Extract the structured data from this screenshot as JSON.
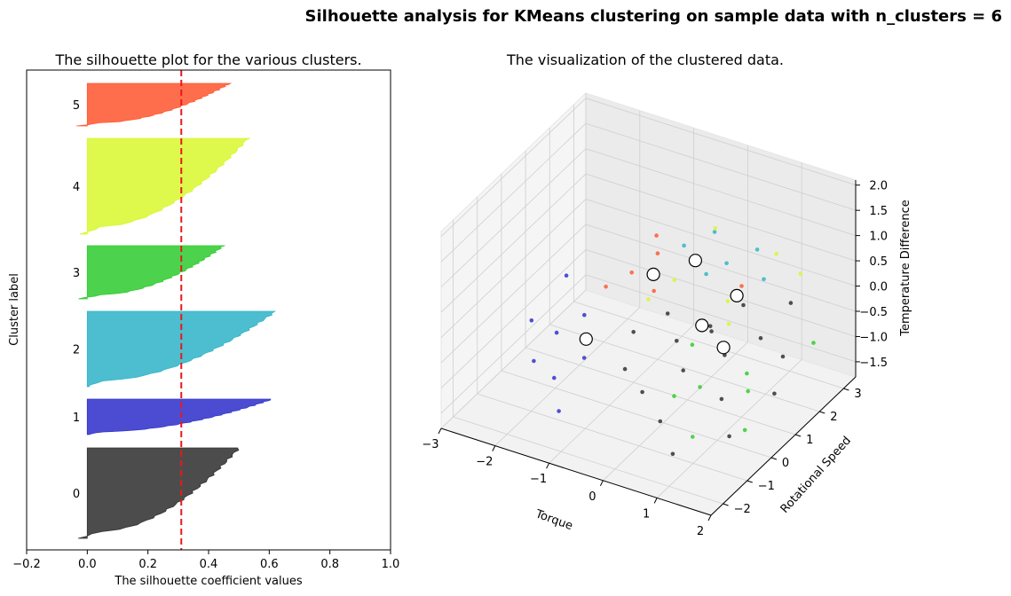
{
  "suptitle": "Silhouette analysis for KMeans clustering on sample data with n_clusters = 6",
  "colors": {
    "cluster_0": "#333333",
    "cluster_1": "#3333cc",
    "cluster_2": "#33b5c8",
    "cluster_3": "#33cc33",
    "cluster_4": "#d9f733",
    "cluster_5": "#ff5a33",
    "average_line": "#e8191b"
  },
  "chart_data": [
    {
      "type": "area",
      "title": "The silhouette plot for the various clusters.",
      "xlabel": "The silhouette coefficient values",
      "ylabel": "Cluster label",
      "xlim": [
        -0.2,
        1.0
      ],
      "xticks": [
        "−0.2",
        "0.0",
        "0.2",
        "0.4",
        "0.6",
        "0.8",
        "1.0"
      ],
      "average_silhouette": 0.31,
      "grid": false,
      "series": [
        {
          "name": "0",
          "max": 0.5,
          "min": -0.03,
          "size": 82
        },
        {
          "name": "1",
          "max": 0.61,
          "min": 0.0,
          "size": 34
        },
        {
          "name": "2",
          "max": 0.62,
          "min": 0.0,
          "size": 71
        },
        {
          "name": "3",
          "max": 0.45,
          "min": -0.03,
          "size": 48
        },
        {
          "name": "4",
          "max": 0.53,
          "min": -0.02,
          "size": 88
        },
        {
          "name": "5",
          "max": 0.47,
          "min": -0.03,
          "size": 34
        }
      ]
    },
    {
      "type": "scatter",
      "title": "The visualization of the clustered data.",
      "xlabel": "Torque",
      "ylabel": "Rotational Speed",
      "zlabel": "Temperature Difference",
      "xticks": [
        "−3",
        "−2",
        "−1",
        "0",
        "1",
        "2"
      ],
      "yticks": [
        "−2",
        "−1",
        "0",
        "1",
        "2",
        "3"
      ],
      "zticks": [
        "−1.5",
        "−1.0",
        "−0.5",
        "0.0",
        "0.5",
        "1.0",
        "1.5",
        "2.0"
      ],
      "xlim": [
        -3,
        2
      ],
      "ylim": [
        -2.5,
        3.5
      ],
      "zlim": [
        -1.8,
        2.1
      ],
      "centers": [
        {
          "x": -0.3,
          "y": 2.0,
          "z": 0.4
        },
        {
          "x": -0.9,
          "y": 1.6,
          "z": 0.1
        },
        {
          "x": 0.2,
          "y": 2.6,
          "z": -0.4
        },
        {
          "x": 0.4,
          "y": 1.6,
          "z": -0.9
        },
        {
          "x": -1.7,
          "y": 0.6,
          "z": -1.0
        },
        {
          "x": 0.0,
          "y": 1.6,
          "z": -0.6
        }
      ],
      "points": [
        {
          "cluster": 0,
          "x": 0.2,
          "y": 1.5,
          "z": -0.5
        },
        {
          "cluster": 0,
          "x": 0.6,
          "y": 1.2,
          "z": -0.8
        },
        {
          "cluster": 0,
          "x": -0.2,
          "y": 1.0,
          "z": -0.7
        },
        {
          "cluster": 0,
          "x": 0.9,
          "y": 0.4,
          "z": -1.2
        },
        {
          "cluster": 0,
          "x": 1.4,
          "y": -0.4,
          "z": -1.4
        },
        {
          "cluster": 0,
          "x": 0.1,
          "y": 0.6,
          "z": -1.0
        },
        {
          "cluster": 0,
          "x": -0.5,
          "y": 1.3,
          "z": -0.4
        },
        {
          "cluster": 0,
          "x": 0.5,
          "y": 2.2,
          "z": -0.3
        },
        {
          "cluster": 0,
          "x": 1.0,
          "y": 1.8,
          "z": -0.6
        },
        {
          "cluster": 0,
          "x": -0.8,
          "y": 0.2,
          "z": -1.1
        },
        {
          "cluster": 0,
          "x": 0.3,
          "y": -0.8,
          "z": -1.3
        },
        {
          "cluster": 0,
          "x": 1.7,
          "y": 0.8,
          "z": -1.0
        },
        {
          "cluster": 0,
          "x": 0.8,
          "y": -1.4,
          "z": -1.5
        },
        {
          "cluster": 0,
          "x": -0.3,
          "y": -0.2,
          "z": -1.2
        },
        {
          "cluster": 0,
          "x": 1.2,
          "y": 2.6,
          "z": -0.2
        },
        {
          "cluster": 0,
          "x": 0.0,
          "y": 2.0,
          "z": -0.9
        },
        {
          "cluster": 0,
          "x": 1.5,
          "y": 1.6,
          "z": -0.7
        },
        {
          "cluster": 0,
          "x": -1.0,
          "y": 1.0,
          "z": -0.8
        },
        {
          "cluster": 1,
          "x": -2.2,
          "y": 0.5,
          "z": -1.0
        },
        {
          "cluster": 1,
          "x": -2.6,
          "y": 1.8,
          "z": -0.6
        },
        {
          "cluster": 1,
          "x": -1.8,
          "y": -0.5,
          "z": -1.3
        },
        {
          "cluster": 1,
          "x": -2.4,
          "y": 0.0,
          "z": -1.4
        },
        {
          "cluster": 1,
          "x": -1.4,
          "y": -1.2,
          "z": -1.5
        },
        {
          "cluster": 1,
          "x": -2.0,
          "y": 1.2,
          "z": -0.9
        },
        {
          "cluster": 1,
          "x": -2.8,
          "y": 0.8,
          "z": -1.1
        },
        {
          "cluster": 1,
          "x": -1.6,
          "y": 0.3,
          "z": -1.2
        },
        {
          "cluster": 2,
          "x": -0.3,
          "y": 2.8,
          "z": 0.6
        },
        {
          "cluster": 2,
          "x": 0.1,
          "y": 2.4,
          "z": 0.3
        },
        {
          "cluster": 2,
          "x": -0.6,
          "y": 2.2,
          "z": 0.5
        },
        {
          "cluster": 2,
          "x": 0.4,
          "y": 3.0,
          "z": 0.4
        },
        {
          "cluster": 2,
          "x": -0.1,
          "y": 2.0,
          "z": 0.2
        },
        {
          "cluster": 2,
          "x": 0.7,
          "y": 2.6,
          "z": 0.1
        },
        {
          "cluster": 3,
          "x": 0.5,
          "y": 0.4,
          "z": -1.1
        },
        {
          "cluster": 3,
          "x": 1.1,
          "y": 1.0,
          "z": -0.9
        },
        {
          "cluster": 3,
          "x": 1.6,
          "y": -0.2,
          "z": -1.3
        },
        {
          "cluster": 3,
          "x": 0.2,
          "y": 0.0,
          "z": -1.2
        },
        {
          "cluster": 3,
          "x": 0.9,
          "y": -0.8,
          "z": -1.4
        },
        {
          "cluster": 3,
          "x": 1.8,
          "y": 2.2,
          "z": -0.6
        },
        {
          "cluster": 3,
          "x": 0.0,
          "y": 1.2,
          "z": -0.8
        },
        {
          "cluster": 3,
          "x": 1.3,
          "y": 0.6,
          "z": -1.0
        },
        {
          "cluster": 4,
          "x": -0.6,
          "y": 1.8,
          "z": 0.0
        },
        {
          "cluster": 4,
          "x": -0.2,
          "y": 2.6,
          "z": 0.8
        },
        {
          "cluster": 4,
          "x": 0.3,
          "y": 2.0,
          "z": -0.2
        },
        {
          "cluster": 4,
          "x": -0.9,
          "y": 1.4,
          "z": -0.3
        },
        {
          "cluster": 4,
          "x": 0.8,
          "y": 2.9,
          "z": 0.5
        },
        {
          "cluster": 4,
          "x": 0.5,
          "y": 1.6,
          "z": -0.4
        },
        {
          "cluster": 4,
          "x": 1.2,
          "y": 3.0,
          "z": 0.2
        },
        {
          "cluster": 4,
          "x": -0.4,
          "y": 2.2,
          "z": 0.3
        },
        {
          "cluster": 5,
          "x": -1.3,
          "y": 1.6,
          "z": 0.0
        },
        {
          "cluster": 5,
          "x": -1.0,
          "y": 2.0,
          "z": 0.3
        },
        {
          "cluster": 5,
          "x": -1.6,
          "y": 1.2,
          "z": -0.2
        },
        {
          "cluster": 5,
          "x": -0.8,
          "y": 1.4,
          "z": -0.1
        },
        {
          "cluster": 5,
          "x": -1.2,
          "y": 2.4,
          "z": 0.4
        },
        {
          "cluster": 5,
          "x": 0.2,
          "y": 2.8,
          "z": -0.3
        }
      ]
    }
  ]
}
